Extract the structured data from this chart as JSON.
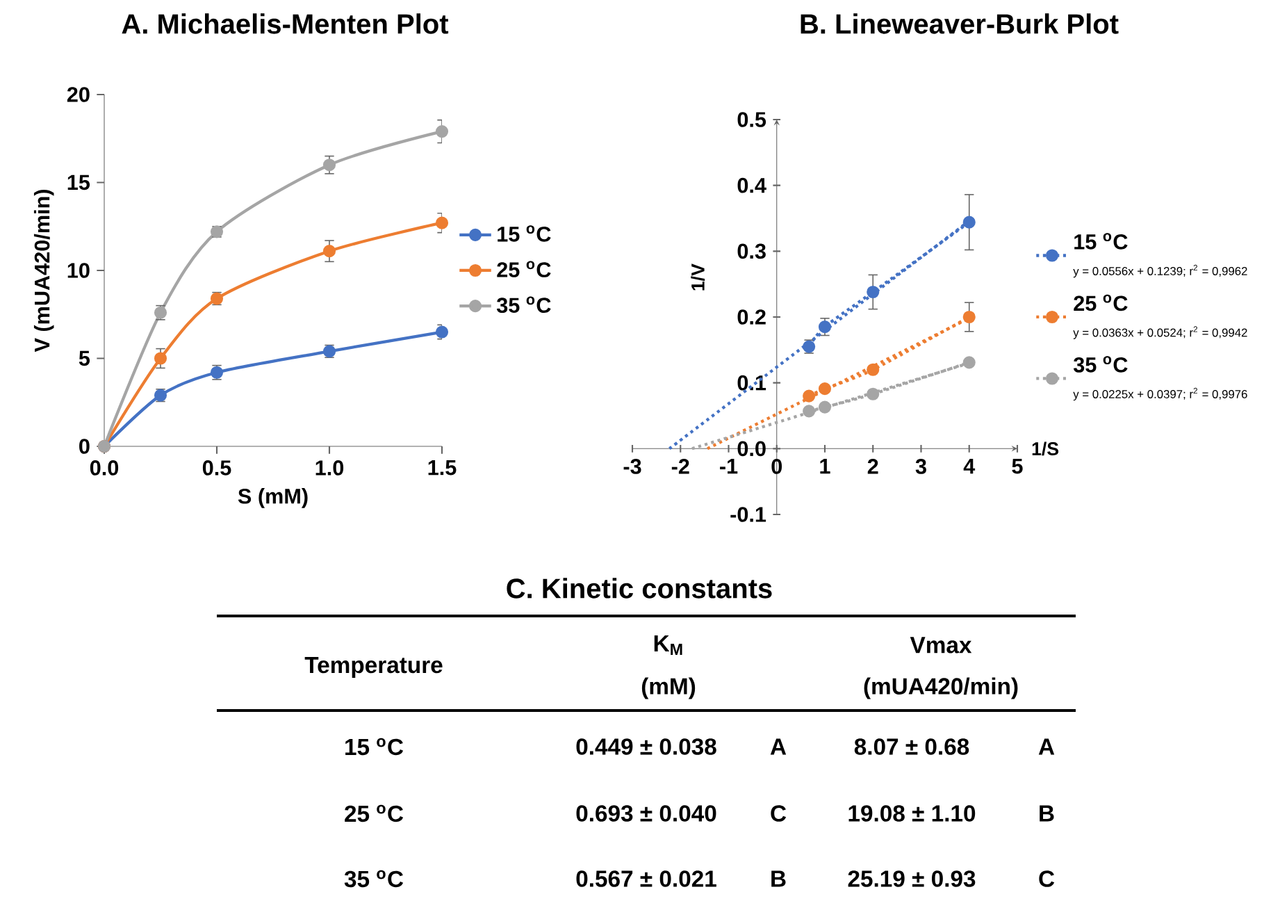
{
  "chart_data": [
    {
      "type": "line",
      "title": "A.   Michaelis-Menten Plot",
      "xlabel": "S (mM)",
      "ylabel": "V (mUA420/min)",
      "x": [
        0,
        0.25,
        0.5,
        1,
        1.5
      ],
      "series": [
        {
          "name": "15 $^{o}$C",
          "color": "#4472c4",
          "values": [
            0,
            2.9,
            4.2,
            5.4,
            6.5
          ],
          "errors": [
            null,
            0.35,
            0.4,
            0.35,
            0.4
          ]
        },
        {
          "name": "25 $^{o}$C",
          "color": "#ed7d31",
          "values": [
            0,
            5.0,
            8.4,
            11.1,
            12.7
          ],
          "errors": [
            null,
            0.55,
            0.35,
            0.6,
            0.55
          ]
        },
        {
          "name": "35 $^{o}$C",
          "color": "#a5a5a5",
          "values": [
            0,
            7.6,
            12.2,
            16.0,
            17.9
          ],
          "errors": [
            null,
            0.4,
            0.3,
            0.5,
            0.65
          ]
        }
      ],
      "xlim": [
        0,
        1.5
      ],
      "xticks": [
        {
          "value": 0,
          "label": "0.0"
        },
        {
          "value": 0.5,
          "label": "0.5"
        },
        {
          "value": 1,
          "label": "1.0"
        },
        {
          "value": 1.5,
          "label": "1.5"
        }
      ],
      "ylim": [
        0,
        20
      ],
      "yticks": [
        0,
        5,
        10,
        15,
        20
      ],
      "legend": "right",
      "marker": "circle",
      "line_style": "solid"
    },
    {
      "type": "line",
      "title": "B. Lineweaver-Burk Plot",
      "xlabel": "1/S",
      "ylabel": "1/V",
      "series": [
        {
          "name": "15 $^{o}$C",
          "color": "#4472c4",
          "x": [
            0.67,
            1,
            2,
            4
          ],
          "values": [
            0.155,
            0.185,
            0.238,
            0.344
          ],
          "errors": [
            0.01,
            0.013,
            0.026,
            0.042
          ]
        },
        {
          "name": "25 $^{o}$C",
          "color": "#ed7d31",
          "x": [
            0.67,
            1,
            2,
            4
          ],
          "values": [
            0.08,
            0.091,
            0.12,
            0.2
          ],
          "errors": [
            null,
            null,
            null,
            0.022
          ]
        },
        {
          "name": "35 $^{o}$C",
          "color": "#a5a5a5",
          "x": [
            0.67,
            1,
            2,
            4
          ],
          "values": [
            0.057,
            0.063,
            0.083,
            0.131
          ]
        },
        {
          "color": "#4472c4",
          "x": [
            -2.23,
            4
          ],
          "values": [
            0,
            0.346
          ],
          "marker": "none"
        },
        {
          "color": "#ed7d31",
          "x": [
            -1.44,
            4
          ],
          "values": [
            0,
            0.198
          ],
          "marker": "none"
        },
        {
          "color": "#a5a5a5",
          "x": [
            -1.76,
            4
          ],
          "values": [
            0,
            0.13
          ],
          "marker": "none"
        }
      ],
      "annotations": [
        "y = 0.0556x + 0.1239; r$^{2}$ = 0,9962",
        "y = 0.0363x + 0.0524; r$^{2}$ = 0,9942",
        "y = 0.0225x + 0.0397; r$^{2}$ = 0,9976"
      ],
      "xlim": [
        -3,
        5
      ],
      "xticks": [
        -3,
        -2,
        -1,
        0,
        1,
        2,
        3,
        4,
        5
      ],
      "ylim": [
        -0.1,
        0.5
      ],
      "yticks": [
        -0.1,
        {
          "value": 0,
          "label": "0.0"
        },
        0.1,
        0.2,
        0.3,
        0.4,
        0.5
      ],
      "legend": "right",
      "marker": "circle",
      "line_style": "dotted"
    },
    {
      "type": "other",
      "title": "C.   Kinetic constants",
      "annotations": [
        "Temperature",
        "K$_{M}$",
        "(mM)",
        "Vmax",
        "(mUA420/min)",
        "15 $^{o}$C",
        "0.449 ± 0.038",
        "A",
        "8.07 ± 0.68",
        "A",
        "25 $^{o}$C",
        "0.693 ± 0.040",
        "C",
        "19.08 ± 1.10",
        "B",
        "35 $^{o}$C",
        "0.567 ± 0.021",
        "B",
        "25.19 ± 0.93",
        "C"
      ]
    }
  ]
}
